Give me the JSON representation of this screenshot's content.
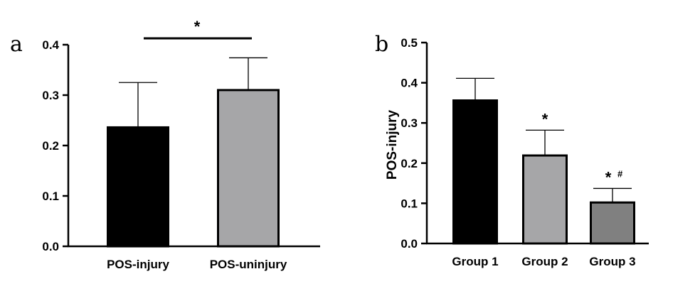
{
  "chart_data": [
    {
      "panel": "a",
      "type": "bar",
      "title": "",
      "xlabel": "",
      "ylabel": "",
      "ylim": [
        0,
        0.4
      ],
      "yticks": [
        "0.0",
        "0.1",
        "0.2",
        "0.3",
        "0.4"
      ],
      "categories": [
        "POS-injury",
        "POS-uninjury"
      ],
      "values": [
        0.236,
        0.31
      ],
      "errors": [
        0.089,
        0.064
      ],
      "colors": [
        "#000000",
        "#a6a6a8"
      ],
      "significance": [
        {
          "label": "*",
          "between": [
            0,
            1
          ]
        }
      ]
    },
    {
      "panel": "b",
      "type": "bar",
      "title": "",
      "xlabel": "",
      "ylabel": "POS-injury",
      "ylim": [
        0,
        0.5
      ],
      "yticks": [
        "0.0",
        "0.1",
        "0.2",
        "0.3",
        "0.4",
        "0.5"
      ],
      "categories": [
        "Group 1",
        "Group 2",
        "Group 3"
      ],
      "values": [
        0.356,
        0.219,
        0.102
      ],
      "errors": [
        0.055,
        0.063,
        0.035
      ],
      "colors": [
        "#000000",
        "#a6a6a8",
        "#808080"
      ],
      "annotations": [
        "",
        "*",
        "*"
      ],
      "annotations_secondary": [
        "",
        "",
        "#"
      ]
    }
  ]
}
